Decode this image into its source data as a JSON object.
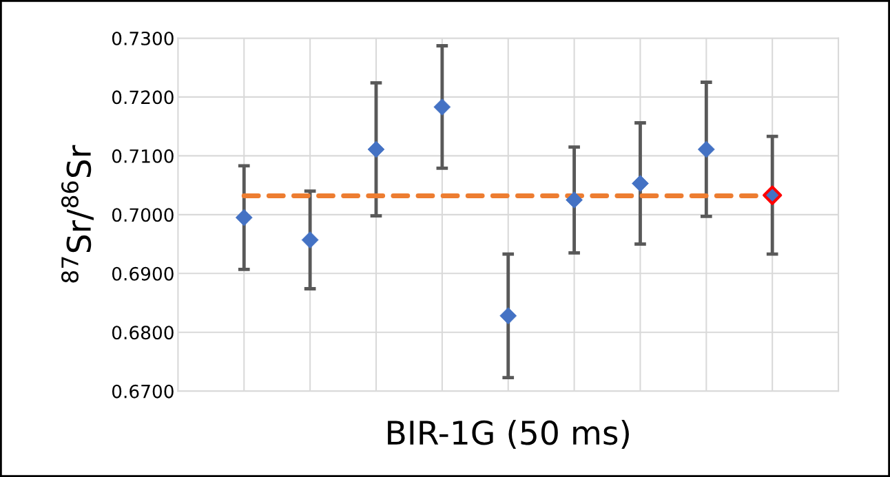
{
  "chart_data": {
    "type": "scatter",
    "xlabel": "BIR-1G (50 ms)",
    "ylabel": "$^{87}$Sr/$^{86}$Sr",
    "categories": [
      null,
      null,
      null,
      null,
      null,
      null,
      null,
      null,
      null
    ],
    "series": [
      {
        "type": "line",
        "color": "#ed7d31",
        "line_style": "dashed",
        "marker": "none",
        "values": [
          0.7032,
          0.7032,
          0.7032,
          0.7032,
          0.7032,
          0.7032,
          0.7032,
          0.7032,
          0.7032
        ]
      },
      {
        "color": "#4472c4",
        "marker": "diamond",
        "colors": [
          "#4472c4",
          "#4472c4",
          "#4472c4",
          "#4472c4",
          "#4472c4",
          "#4472c4",
          "#4472c4",
          "#4472c4",
          "#ff0000"
        ],
        "values": [
          0.6995,
          0.6957,
          0.7111,
          0.7183,
          0.6828,
          0.7025,
          0.7053,
          0.7111,
          0.7033
        ],
        "errors": [
          0.0088,
          0.0083,
          0.0113,
          0.0104,
          0.0105,
          0.009,
          0.0103,
          0.0114,
          0.01
        ]
      }
    ],
    "ylim": [
      0.67,
      0.73
    ],
    "yticks": [
      {
        "value": 0.67,
        "label": "0.6700"
      },
      {
        "value": 0.68,
        "label": "0.6800"
      },
      {
        "value": 0.69,
        "label": "0.6900"
      },
      {
        "value": 0.7,
        "label": "0.7000"
      },
      {
        "value": 0.71,
        "label": "0.7100"
      },
      {
        "value": 0.72,
        "label": "0.7200"
      },
      {
        "value": 0.73,
        "label": "0.7300"
      }
    ],
    "grid": true,
    "tick_labels": "y"
  }
}
